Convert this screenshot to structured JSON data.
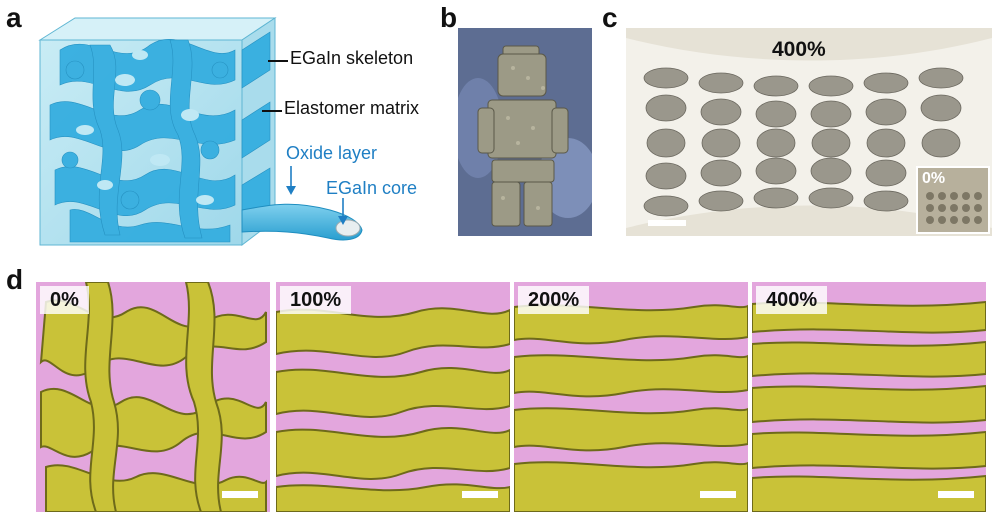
{
  "panels": {
    "a": {
      "letter": "a",
      "labels": {
        "skeleton": "EGaIn skeleton",
        "matrix": "Elastomer matrix",
        "oxide": "Oxide layer",
        "core": "EGaIn core"
      }
    },
    "b": {
      "letter": "b"
    },
    "c": {
      "letter": "c",
      "strain_main": "400%",
      "strain_inset": "0%"
    },
    "d": {
      "letter": "d",
      "strains": [
        "0%",
        "100%",
        "200%",
        "400%"
      ]
    }
  },
  "colors": {
    "egain_blue": "#3cb4e0",
    "matrix_blue": "#b6e3ef",
    "skeleton_yellow": "#c9c238",
    "skeleton_dark": "#6e6a1a",
    "matrix_pink": "#e3a6dd",
    "label_blue": "#1f7fc4"
  }
}
